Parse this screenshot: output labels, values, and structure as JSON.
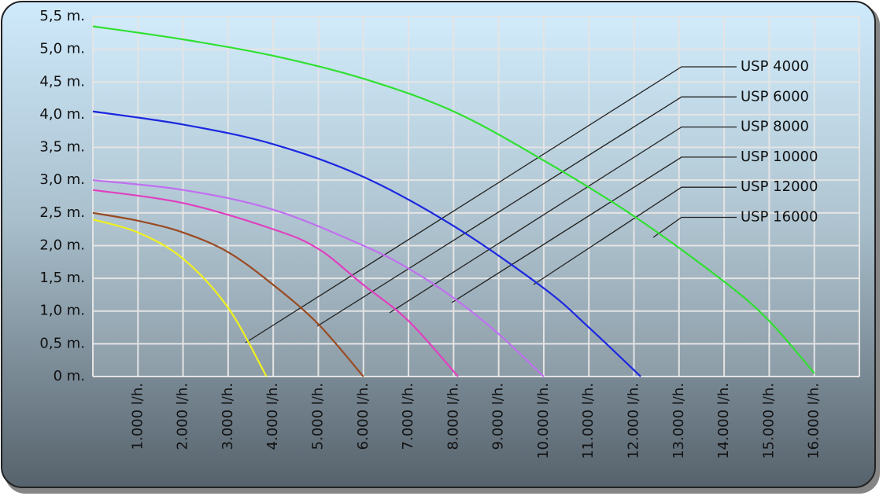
{
  "chart_data": {
    "type": "line",
    "xlim": [
      0,
      17000
    ],
    "ylim": [
      0,
      5.5
    ],
    "xticks": [
      {
        "value": 1000,
        "label": "1.000 l/h."
      },
      {
        "value": 2000,
        "label": "2.000 l/h."
      },
      {
        "value": 3000,
        "label": "3.000 l/h."
      },
      {
        "value": 4000,
        "label": "4.000 l/h."
      },
      {
        "value": 5000,
        "label": "5.000 l/h."
      },
      {
        "value": 6000,
        "label": "6.000 l/h."
      },
      {
        "value": 7000,
        "label": "7.000 l/h."
      },
      {
        "value": 8000,
        "label": "8.000 l/h."
      },
      {
        "value": 9000,
        "label": "9.000 l/h."
      },
      {
        "value": 10000,
        "label": "10.000 l/h."
      },
      {
        "value": 11000,
        "label": "11.000 l/h."
      },
      {
        "value": 12000,
        "label": "12.000 l/h."
      },
      {
        "value": 13000,
        "label": "13.000 l/h."
      },
      {
        "value": 14000,
        "label": "14.000 l/h."
      },
      {
        "value": 15000,
        "label": "15.000 l/h."
      },
      {
        "value": 16000,
        "label": "16.000 l/h."
      }
    ],
    "yticks": [
      {
        "value": 0,
        "label": "0 m."
      },
      {
        "value": 0.5,
        "label": "0,5 m."
      },
      {
        "value": 1,
        "label": "1,0 m."
      },
      {
        "value": 1.5,
        "label": "1,5 m."
      },
      {
        "value": 2,
        "label": "2,0 m."
      },
      {
        "value": 2.5,
        "label": "2,5 m."
      },
      {
        "value": 3,
        "label": "3,0 m."
      },
      {
        "value": 3.5,
        "label": "3,5 m."
      },
      {
        "value": 4,
        "label": "4,0 m."
      },
      {
        "value": 4.5,
        "label": "4,5 m."
      },
      {
        "value": 5,
        "label": "5,0 m."
      },
      {
        "value": 5.5,
        "label": "5,5 m."
      }
    ],
    "grid": true,
    "series": [
      {
        "name": "USP 4000",
        "color": "#f0f020",
        "x": [
          0,
          1000,
          2000,
          3000,
          3850
        ],
        "values": [
          2.4,
          2.2,
          1.8,
          1.05,
          0
        ]
      },
      {
        "name": "USP 6000",
        "color": "#9a4a22",
        "x": [
          0,
          1000,
          2000,
          3000,
          4000,
          5000,
          6000
        ],
        "values": [
          2.5,
          2.38,
          2.2,
          1.9,
          1.4,
          0.8,
          0
        ]
      },
      {
        "name": "USP 8000",
        "color": "#e040c0",
        "x": [
          0,
          2000,
          4000,
          5000,
          6000,
          7000,
          8100
        ],
        "values": [
          2.85,
          2.65,
          2.25,
          1.95,
          1.4,
          0.85,
          0
        ]
      },
      {
        "name": "USP 10000",
        "color": "#c070f0",
        "x": [
          0,
          2000,
          4000,
          6000,
          7000,
          8000,
          9000,
          10000
        ],
        "values": [
          3.0,
          2.85,
          2.55,
          2.0,
          1.65,
          1.2,
          0.65,
          0
        ]
      },
      {
        "name": "USP 12000",
        "color": "#1c28e0",
        "x": [
          0,
          2000,
          4000,
          6000,
          8000,
          10000,
          11000,
          12150
        ],
        "values": [
          4.05,
          3.85,
          3.55,
          3.05,
          2.3,
          1.35,
          0.75,
          0
        ]
      },
      {
        "name": "USP 16000",
        "color": "#30e030",
        "x": [
          0,
          2000,
          4000,
          6000,
          8000,
          10000,
          12000,
          14000,
          15000,
          16000
        ],
        "values": [
          5.35,
          5.15,
          4.9,
          4.55,
          4.05,
          3.3,
          2.45,
          1.45,
          0.85,
          0.05
        ]
      }
    ]
  }
}
